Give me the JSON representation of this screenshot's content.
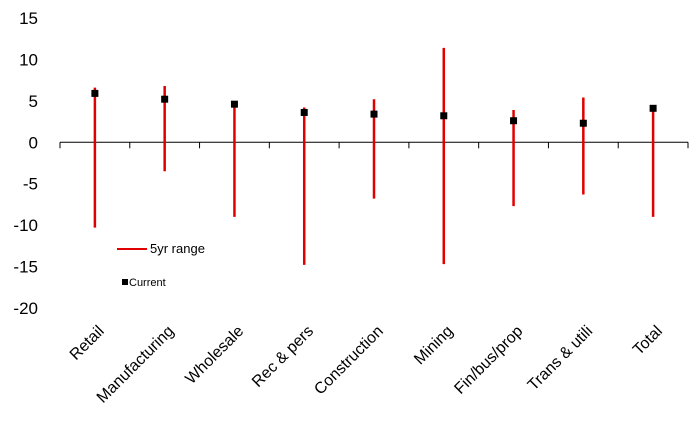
{
  "chart_data": {
    "type": "range-and-point",
    "categories": [
      "Retail",
      "Manufacturing",
      "Wholesale",
      "Rec & pers",
      "Construction",
      "Mining",
      "Fin/bus/prop",
      "Trans & utili",
      "Total"
    ],
    "series": [
      {
        "name": "5yr range",
        "low": [
          -10.3,
          -3.5,
          -9.0,
          -14.8,
          -6.8,
          -14.7,
          -7.7,
          -6.3,
          -9.0
        ],
        "high": [
          6.6,
          6.8,
          4.6,
          4.2,
          5.2,
          11.4,
          3.9,
          5.4,
          4.2
        ]
      },
      {
        "name": "Current",
        "values": [
          5.9,
          5.2,
          4.6,
          3.6,
          3.4,
          3.2,
          2.6,
          2.3,
          4.1
        ]
      }
    ],
    "ylim": [
      -20,
      15
    ],
    "yticks": [
      15,
      10,
      5,
      0,
      -5,
      -10,
      -15,
      -20
    ],
    "legend_placement": "lower-left",
    "grid": false
  },
  "colors": {
    "range": "#e00000",
    "point": "#000000",
    "axis": "#000000"
  }
}
